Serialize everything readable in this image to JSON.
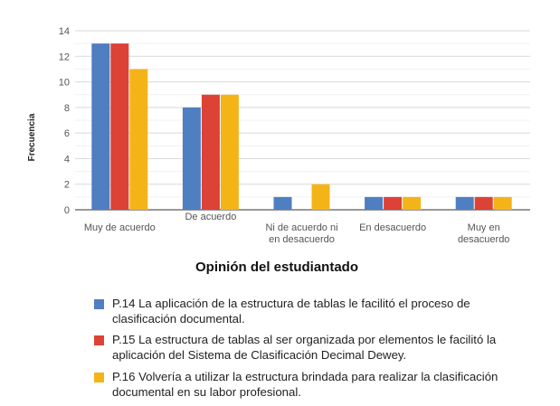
{
  "chart_data": {
    "type": "bar",
    "title": "Opinión del estudiantado",
    "xlabel": "Opinión del estudiantado",
    "ylabel": "Frecuencia",
    "ylim": [
      0,
      14
    ],
    "yticks": [
      0,
      2,
      4,
      6,
      8,
      10,
      12,
      14
    ],
    "grid": true,
    "legend_position": "bottom",
    "categories": [
      [
        "Muy de acuerdo"
      ],
      [
        "De acuerdo"
      ],
      [
        "Ni de acuerdo ni",
        "en desacuerdo"
      ],
      [
        "En desacuerdo"
      ],
      [
        "Muy en",
        "desacuerdo"
      ]
    ],
    "series": [
      {
        "name": "P.14 La aplicación de la estructura de tablas le facilitó el proceso de clasificación documental.",
        "lines": [
          "P.14 La aplicación de la estructura de tablas le facilitó el proceso de",
          "clasificación documental."
        ],
        "color": "#4f7ec1",
        "values": [
          13,
          8,
          1,
          1,
          1
        ]
      },
      {
        "name": "P.15 La estructura de tablas al ser organizada por elementos le facilitó la aplicación del Sistema de Clasificación Decimal Dewey.",
        "lines": [
          "P.15 La estructura de tablas al ser organizada por elementos le facilitó la",
          "aplicación del Sistema de Clasificación Decimal Dewey."
        ],
        "color": "#dc4236",
        "values": [
          13,
          9,
          0,
          1,
          1
        ]
      },
      {
        "name": "P.16 Volvería a utilizar la estructura brindada para realizar la clasificación documental en su labor profesional.",
        "lines": [
          "P.16 Volvería a utilizar la estructura brindada para realizar la clasificación",
          "documental en su labor profesional."
        ],
        "color": "#f4b418",
        "values": [
          11,
          9,
          2,
          1,
          1
        ]
      }
    ]
  }
}
